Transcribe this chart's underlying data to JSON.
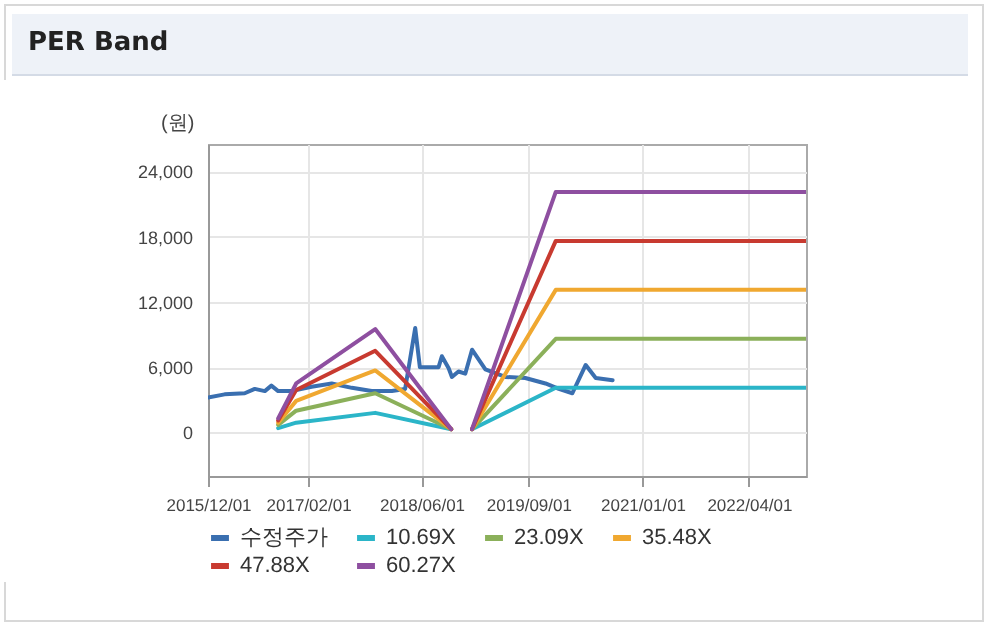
{
  "chart_data": {
    "type": "line",
    "title": "PER Band",
    "ylabel": "(원)",
    "xlim": [
      "2015-12-01",
      "2022-12-01"
    ],
    "xticks": [
      {
        "value": "2015-12-01",
        "label": "2015/12/01"
      },
      {
        "value": "2017-02-01",
        "label": "2017/02/01"
      },
      {
        "value": "2018-06-01",
        "label": "2018/06/01"
      },
      {
        "value": "2019-09-01",
        "label": "2019/09/01"
      },
      {
        "value": "2021-01-01",
        "label": "2021/01/01"
      },
      {
        "value": "2022-04-01",
        "label": "2022/04/01"
      }
    ],
    "ylim": [
      -4000,
      26500
    ],
    "yticks": [
      0,
      {
        "value": 6000,
        "label": "6,000"
      },
      {
        "value": 12000,
        "label": "12,000"
      },
      {
        "value": 18000,
        "label": "18,000"
      },
      {
        "value": 24000,
        "label": "24,000"
      }
    ],
    "grid": true,
    "legend": "bottom",
    "series": [
      {
        "name": "수정주가",
        "color": "#3a6fb0",
        "x": [
          "2015-12-01",
          "2016-02-10",
          "2016-05-06",
          "2016-06-18",
          "2016-07-31",
          "2016-08-28",
          "2016-09-26",
          "2016-11-22",
          "2017-02-16",
          "2017-05-13",
          "2017-08-07",
          "2017-10-31",
          "2018-01-25",
          "2018-03-23",
          "2018-05-05",
          "2018-05-25",
          "2018-08-13",
          "2018-08-27",
          "2018-09-25",
          "2018-10-09",
          "2018-11-06",
          "2018-12-05",
          "2019-01-03",
          "2019-03-01",
          "2019-05-25",
          "2019-08-19",
          "2019-11-13",
          "2020-01-09",
          "2020-03-07",
          "2020-05-03",
          "2020-06-15",
          "2020-08-26"
        ],
        "values": [
          3200,
          3500,
          3600,
          4000,
          3800,
          4300,
          3800,
          3800,
          4200,
          4500,
          4100,
          3800,
          3800,
          4000,
          9600,
          6000,
          6000,
          7000,
          5900,
          5100,
          5600,
          5400,
          7600,
          5800,
          5100,
          5000,
          4500,
          4000,
          3600,
          6200,
          5000,
          4800
        ]
      },
      {
        "name": "10.69X",
        "color": "#2bb5c8",
        "x": [
          "2016-09-26",
          "2016-12-12",
          "2017-11-15",
          "2018-10-06",
          "2018-11-20",
          "2019-01-03",
          "2019-12-27",
          "2022-12-01"
        ],
        "values": [
          400,
          900,
          1800,
          300,
          null,
          300,
          4100,
          4100
        ]
      },
      {
        "name": "23.09X",
        "color": "#8bb05a",
        "x": [
          "2016-09-26",
          "2016-12-12",
          "2017-11-15",
          "2018-10-06",
          "2018-11-20",
          "2019-01-03",
          "2019-12-27",
          "2022-12-01"
        ],
        "values": [
          700,
          2000,
          3600,
          300,
          null,
          300,
          8600,
          8600
        ]
      },
      {
        "name": "35.48X",
        "color": "#f0a830",
        "x": [
          "2016-09-26",
          "2016-12-12",
          "2017-11-15",
          "2018-10-06",
          "2018-11-20",
          "2019-01-03",
          "2019-12-27",
          "2022-12-01"
        ],
        "values": [
          900,
          2900,
          5700,
          300,
          null,
          300,
          13100,
          13100
        ]
      },
      {
        "name": "47.88X",
        "color": "#c83a30",
        "x": [
          "2016-09-26",
          "2016-12-12",
          "2017-11-15",
          "2018-10-06",
          "2018-11-20",
          "2019-01-03",
          "2019-12-27",
          "2022-12-01"
        ],
        "values": [
          1100,
          3900,
          7500,
          300,
          null,
          300,
          17600,
          17600
        ]
      },
      {
        "name": "60.27X",
        "color": "#8e4fa0",
        "x": [
          "2016-09-26",
          "2016-12-12",
          "2017-11-15",
          "2018-10-06",
          "2018-11-20",
          "2019-01-03",
          "2019-12-27",
          "2022-12-01"
        ],
        "values": [
          1300,
          4500,
          9500,
          300,
          null,
          300,
          22100,
          22100
        ]
      }
    ]
  }
}
